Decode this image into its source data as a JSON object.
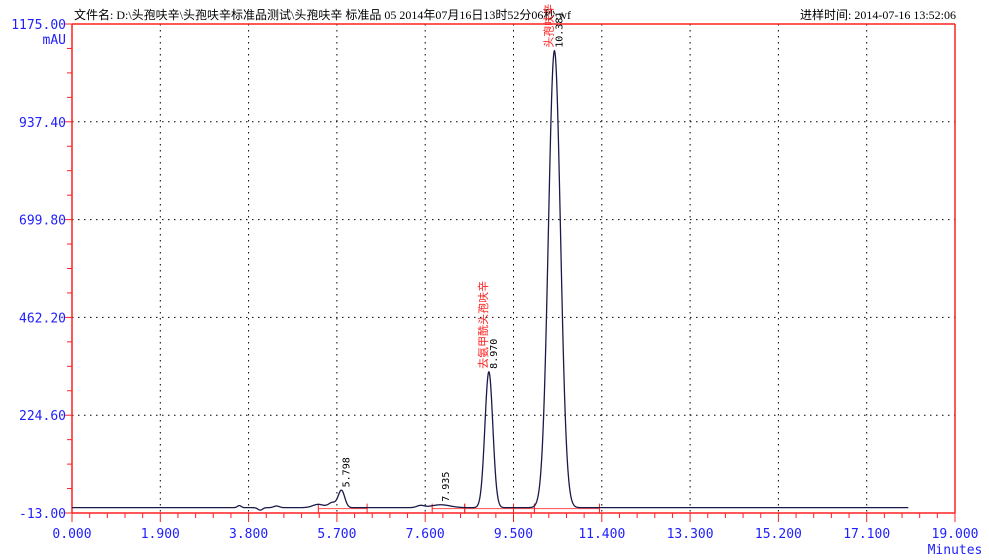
{
  "header": {
    "file_label": "文件名: D:\\头孢呋辛\\头孢呋辛标准品测试\\头孢呋辛 标准品 05 2014年07月16日13时52分06秒.wf",
    "inject_time": "进样时间: 2014-07-16 13:52:06"
  },
  "chart_data": {
    "type": "line",
    "title": "",
    "xlabel": "Minutes",
    "ylabel": "mAU",
    "xlim": [
      0,
      19
    ],
    "ylim": [
      -13,
      1175
    ],
    "x_ticks": [
      "0.000",
      "1.900",
      "3.800",
      "5.700",
      "7.600",
      "9.500",
      "11.400",
      "13.300",
      "15.200",
      "17.100",
      "19.000"
    ],
    "y_ticks": [
      "1175.00",
      "937.40",
      "699.80",
      "462.20",
      "224.60",
      "-13.00"
    ],
    "grid": true,
    "colors": {
      "trace": "#1a1a4a",
      "axis": "#ff2020",
      "tick_labels": "#2020ff",
      "peak_names": "#ff2020"
    },
    "baseline_mAU": 0,
    "trace_end_min": 18.0,
    "peaks": [
      {
        "rt": 3.6,
        "height": 5,
        "sigma": 0.04
      },
      {
        "rt": 4.05,
        "height": -6,
        "sigma": 0.05
      },
      {
        "rt": 4.4,
        "height": 4,
        "sigma": 0.06
      },
      {
        "rt": 5.3,
        "height": 8,
        "sigma": 0.12
      },
      {
        "rt": 5.6,
        "height": 12,
        "sigma": 0.08
      },
      {
        "rt": 5.798,
        "height": 42,
        "sigma": 0.07,
        "label": "5.798"
      },
      {
        "rt": 7.5,
        "height": 5,
        "sigma": 0.08
      },
      {
        "rt": 7.935,
        "height": 7,
        "sigma": 0.2,
        "label": "7.935"
      },
      {
        "rt": 8.97,
        "height": 330,
        "sigma": 0.085,
        "label": "8.970",
        "name": "去氨甲酰头孢呋辛"
      },
      {
        "rt": 10.381,
        "height": 1110,
        "sigma": 0.13,
        "label": "10.381",
        "name": "头孢呋辛"
      }
    ],
    "integration_segments": [
      [
        5.3,
        6.35
      ],
      [
        7.75,
        8.45
      ],
      [
        8.45,
        9.5
      ],
      [
        9.5,
        9.95
      ],
      [
        9.95,
        11.35
      ]
    ]
  }
}
